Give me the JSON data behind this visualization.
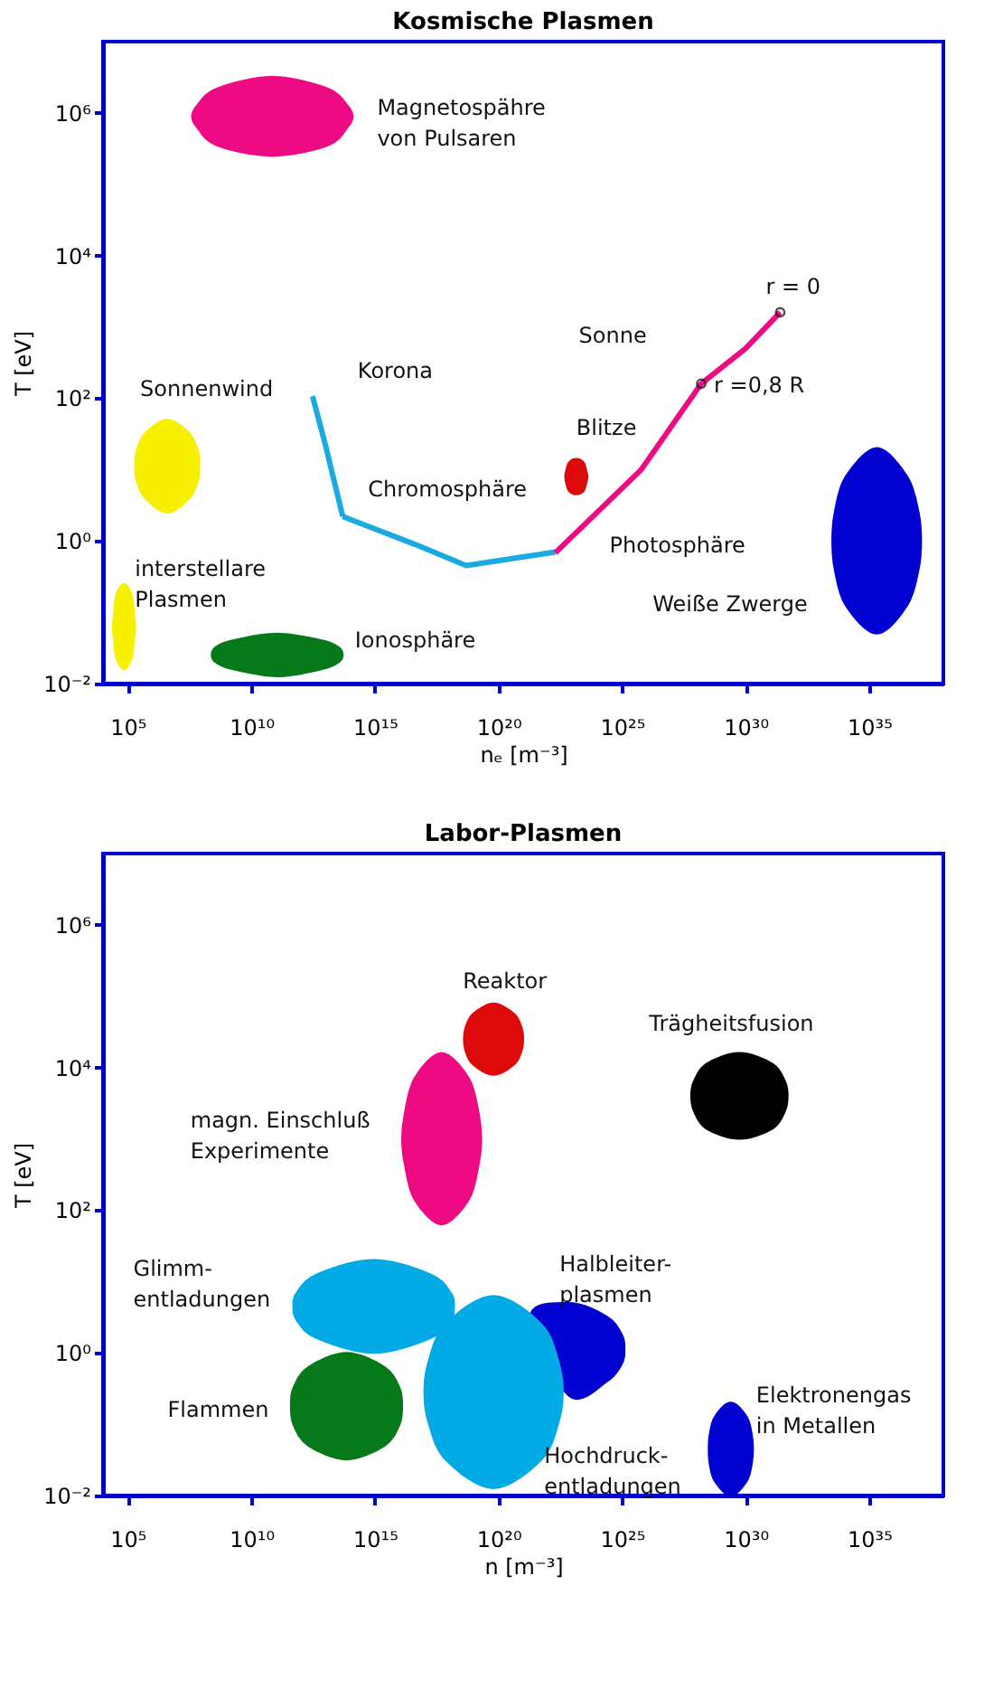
{
  "chart_data": [
    {
      "type": "area",
      "title": "Kosmische  Plasmen",
      "xlabel": "nₑ [m⁻³]",
      "ylabel": "T [eV]",
      "log": "xy",
      "grid": false,
      "xlim": [
        10000.0,
        1e+38
      ],
      "ylim": [
        0.01,
        10000000.0
      ],
      "xticks": [
        {
          "value": 100000.0,
          "label": "10⁵"
        },
        {
          "value": 10000000000.0,
          "label": "10¹⁰"
        },
        {
          "value": 1000000000000000.0,
          "label": "10¹⁵"
        },
        {
          "value": 1e+20,
          "label": "10²⁰"
        },
        {
          "value": 1e+25,
          "label": "10²⁵"
        },
        {
          "value": 1e+30,
          "label": "10³⁰"
        },
        {
          "value": 1e+35,
          "label": "10³⁵"
        }
      ],
      "yticks": [
        {
          "value": 0.01,
          "label": "10⁻²"
        },
        {
          "value": 1,
          "label": "10⁰"
        },
        {
          "value": 100,
          "label": "10²"
        },
        {
          "value": 10000,
          "label": "10⁴"
        },
        {
          "value": 1000000,
          "label": "10⁶"
        }
      ],
      "series": [
        {
          "name": "Magnetospähre\nvon Pulsaren",
          "color": "#ee0a82",
          "x": [
            40000000.0,
            63000000.0,
            400000000.0,
            71000000000.0,
            12600000000000.0,
            79000000000000.0,
            126000000000000.0,
            79000000000000.0,
            12600000000000.0,
            71000000000.0,
            400000000.0,
            63000000.0
          ],
          "values": [
            890000.0,
            1260000.0,
            2200000.0,
            3200000.0,
            2200000.0,
            1260000.0,
            890000.0,
            630000.0,
            350000.0,
            250000.0,
            350000.0,
            630000.0
          ]
        },
        {
          "name": "Sonnenwind",
          "color": "#f7f000",
          "x": [
            200000.0,
            224000.0,
            500000.0,
            4000000.0,
            32000000.0,
            71000000.0,
            79000000.0,
            71000000.0,
            32000000.0,
            4000000.0,
            500000.0,
            224000.0
          ],
          "values": [
            11.2,
            17.8,
            32,
            50,
            32,
            17.8,
            11.2,
            7.1,
            4,
            2.5,
            4,
            7.1
          ]
        },
        {
          "name": "interstellare\nPlasmen",
          "color": "#f7f000",
          "x": [
            25000.0,
            28000.0,
            35000.0,
            71000.0,
            140000.0,
            180000.0,
            200000.0,
            180000.0,
            140000.0,
            71000.0,
            35000.0,
            28000.0
          ],
          "values": [
            0.063,
            0.1,
            0.18,
            0.25,
            0.18,
            0.1,
            0.063,
            0.04,
            0.022,
            0.016,
            0.022,
            0.04
          ]
        },
        {
          "name": "Ionosphäre",
          "color": "#06791a",
          "x": [
            250000000.0,
            350000000.0,
            1600000000.0,
            110000000000.0,
            7900000000000.0,
            35000000000000.0,
            50000000000000.0,
            35000000000000.0,
            7900000000000.0,
            110000000000.0,
            1600000000.0,
            350000000.0
          ],
          "values": [
            0.025,
            0.032,
            0.04,
            0.05,
            0.04,
            0.032,
            0.025,
            0.02,
            0.016,
            0.0126,
            0.016,
            0.02
          ]
        },
        {
          "name": "Blitze",
          "color": "#dd0a0a",
          "x": [
            5e+22,
            5.6e+22,
            7.1e+22,
            1.4e+23,
            2.8e+23,
            3.5e+23,
            4e+23,
            3.5e+23,
            2.8e+23,
            1.4e+23,
            7.1e+22,
            5.6e+22
          ],
          "values": [
            7.9,
            10,
            12.6,
            14.1,
            12.6,
            10,
            7.9,
            6.3,
            5,
            4.5,
            5,
            6.3
          ]
        },
        {
          "name": "Weiße  Zwerge",
          "color": "#0000d0",
          "x": [
            3.2e+33,
            4e+33,
            1.1e+34,
            2e+35,
            3.5e+36,
            1e+37,
            1.26e+37,
            1e+37,
            3.5e+36,
            2e+35,
            1.1e+34,
            4e+33
          ],
          "values": [
            1,
            2.5,
            7.9,
            20,
            7.9,
            2.5,
            1,
            0.4,
            0.126,
            0.05,
            0.126,
            0.4
          ]
        },
        {
          "type": "line",
          "name": "Korona",
          "color": "#1aa9e1",
          "x": [
            3000000000000.0,
            10000000000000.0,
            50000000000000.0
          ],
          "values": [
            107,
            22,
            2.2
          ]
        },
        {
          "type": "line",
          "name": "Chromosphäre",
          "color": "#1aa9e1",
          "x": [
            50000000000000.0,
            4e+16,
            5e+18,
            2e+22
          ],
          "values": [
            2.2,
            0.9,
            0.45,
            0.7
          ]
        },
        {
          "type": "line",
          "name": "Sonne",
          "color": "#ee0a82",
          "x": [
            2e+22,
            6e+25,
            1.6e+28,
            1e+30,
            2.5e+31
          ],
          "values": [
            0.68,
            10,
            160,
            500,
            1600
          ]
        },
        {
          "type": "scatter",
          "marker": "circle",
          "color": "#000000",
          "x": [
            1.6e+28,
            2.5e+31
          ],
          "values": [
            160,
            1600
          ]
        }
      ],
      "annotations": [
        {
          "text": "r = 0",
          "x": 2.5e+31,
          "y": 1600
        },
        {
          "text": "r =0,8  R",
          "x": 1.6e+28,
          "y": 160
        },
        {
          "text": "Photosphäre",
          "x": 2e+22,
          "y": 0.68
        }
      ]
    },
    {
      "type": "area",
      "title": "Labor-Plasmen",
      "xlabel": "n [m⁻³]",
      "ylabel": "T [eV]",
      "log": "xy",
      "grid": false,
      "xlim": [
        10000.0,
        1e+38
      ],
      "ylim": [
        0.01,
        10000000.0
      ],
      "xticks": [
        {
          "value": 100000.0,
          "label": "10⁵"
        },
        {
          "value": 10000000000.0,
          "label": "10¹⁰"
        },
        {
          "value": 1000000000000000.0,
          "label": "10¹⁵"
        },
        {
          "value": 1e+20,
          "label": "10²⁰"
        },
        {
          "value": 1e+25,
          "label": "10²⁵"
        },
        {
          "value": 1e+30,
          "label": "10³⁰"
        },
        {
          "value": 1e+35,
          "label": "10³⁵"
        }
      ],
      "yticks": [
        {
          "value": 0.01,
          "label": "10⁻²"
        },
        {
          "value": 1,
          "label": "10⁰"
        },
        {
          "value": 100,
          "label": "10²"
        },
        {
          "value": 10000,
          "label": "10⁴"
        },
        {
          "value": 1000000,
          "label": "10⁶"
        }
      ],
      "series": [
        {
          "name": "Reaktor",
          "color": "#dd0a0a",
          "x": [
            4e+18,
            4.5e+18,
            8.9e+18,
            6.3e+19,
            4.5e+20,
            8.9e+20,
            1e+21,
            8.9e+20,
            4.5e+20,
            6.3e+19,
            8.9e+18,
            4.5e+18
          ],
          "values": [
            25000.0,
            35000.0,
            56000.0,
            79000.0,
            56000.0,
            35000.0,
            25000.0,
            17800.0,
            11200.0,
            7900.0,
            11200.0,
            17800.0
          ]
        },
        {
          "name": "Trägheitsfusion",
          "color": "#000000",
          "x": [
            6.3e+27,
            7.9e+27,
            2.5e+28,
            5.6e+29,
            1.26e+31,
            4e+31,
            5e+31,
            4e+31,
            1.26e+31,
            5.6e+29,
            2.5e+28,
            7.9e+27
          ],
          "values": [
            4000.0,
            6300.0,
            11200.0,
            16000.0,
            11200.0,
            6300.0,
            4000.0,
            2500.0,
            1400.0,
            1000.0,
            1400.0,
            2500.0
          ]
        },
        {
          "name": "magn.  Einschluß\nExperimente",
          "color": "#ee0a82",
          "x": [
            1.26e+16,
            1.6e+16,
            4e+16,
            5e+17,
            6.3e+18,
            1.6e+19,
            2e+19,
            1.6e+19,
            6.3e+18,
            5e+17,
            4e+16,
            1.6e+16
          ],
          "values": [
            1000.0,
            2240.0,
            7100.0,
            16000.0,
            7100.0,
            2240.0,
            1000.0,
            447,
            141,
            63,
            141,
            447
          ]
        },
        {
          "name": "Glimm-\nentladungen",
          "color": "#02aae6",
          "x": [
            500000000000.0,
            710000000000.0,
            4500000000000.0,
            890000000000000.0,
            1.78e+17,
            1.12e+18,
            1.6e+18,
            1.12e+18,
            1.78e+17,
            890000000000000.0,
            4500000000000.0,
            710000000000.0
          ],
          "values": [
            4.5,
            7.1,
            12.6,
            20,
            12.6,
            7.1,
            4.5,
            2.8,
            1.6,
            1,
            1.6,
            2.8
          ]
        },
        {
          "name": "Flammen",
          "color": "#06791a",
          "x": [
            400000000000.0,
            500000000000.0,
            2000000000000.0,
            71000000000000.0,
            2500000000000000.0,
            1e+16,
            1.26e+16,
            1e+16,
            2500000000000000.0,
            71000000000000.0,
            2000000000000.0,
            500000000000.0
          ],
          "values": [
            0.18,
            0.32,
            0.63,
            1,
            0.63,
            0.32,
            0.18,
            0.1,
            0.05,
            0.032,
            0.05,
            0.1
          ]
        },
        {
          "name": "Halbleiter-\nplasmen",
          "color": "#0000d0",
          "x": [
            2e+21,
            7.1e+22,
            2.5e+24,
            1e+25,
            1.26e+25,
            1e+25,
            2.5e+24,
            7.1e+22
          ],
          "values": [
            3.2,
            5,
            3.2,
            1.78,
            1.12,
            0.71,
            0.4,
            0.25
          ]
        },
        {
          "name": "Hochdruck-\nentladungen",
          "color": "#02aae6",
          "x": [
            1e+17,
            1.41e+17,
            7.1e+17,
            6.3e+19,
            5.6e+21,
            2.8e+22,
            4e+22,
            2.8e+22,
            5.6e+21,
            6.3e+19,
            7.1e+17,
            1.41e+17
          ],
          "values": [
            0.28,
            0.71,
            2.5,
            6.3,
            2.5,
            0.71,
            0.28,
            0.112,
            0.032,
            0.0126,
            0.032,
            0.112
          ]
        },
        {
          "name": "Elektronengas\nin  Metallen",
          "color": "#0000d0",
          "x": [
            3.2e+28,
            3.5e+28,
            5.6e+28,
            2.5e+29,
            1.12e+30,
            1.78e+30,
            2e+30,
            1.78e+30,
            1.12e+30,
            2.5e+29,
            5.6e+28,
            3.5e+28
          ],
          "values": [
            0.045,
            0.071,
            0.126,
            0.2,
            0.126,
            0.071,
            0.045,
            0.028,
            0.016,
            0.01,
            0.016,
            0.028
          ]
        }
      ]
    }
  ]
}
